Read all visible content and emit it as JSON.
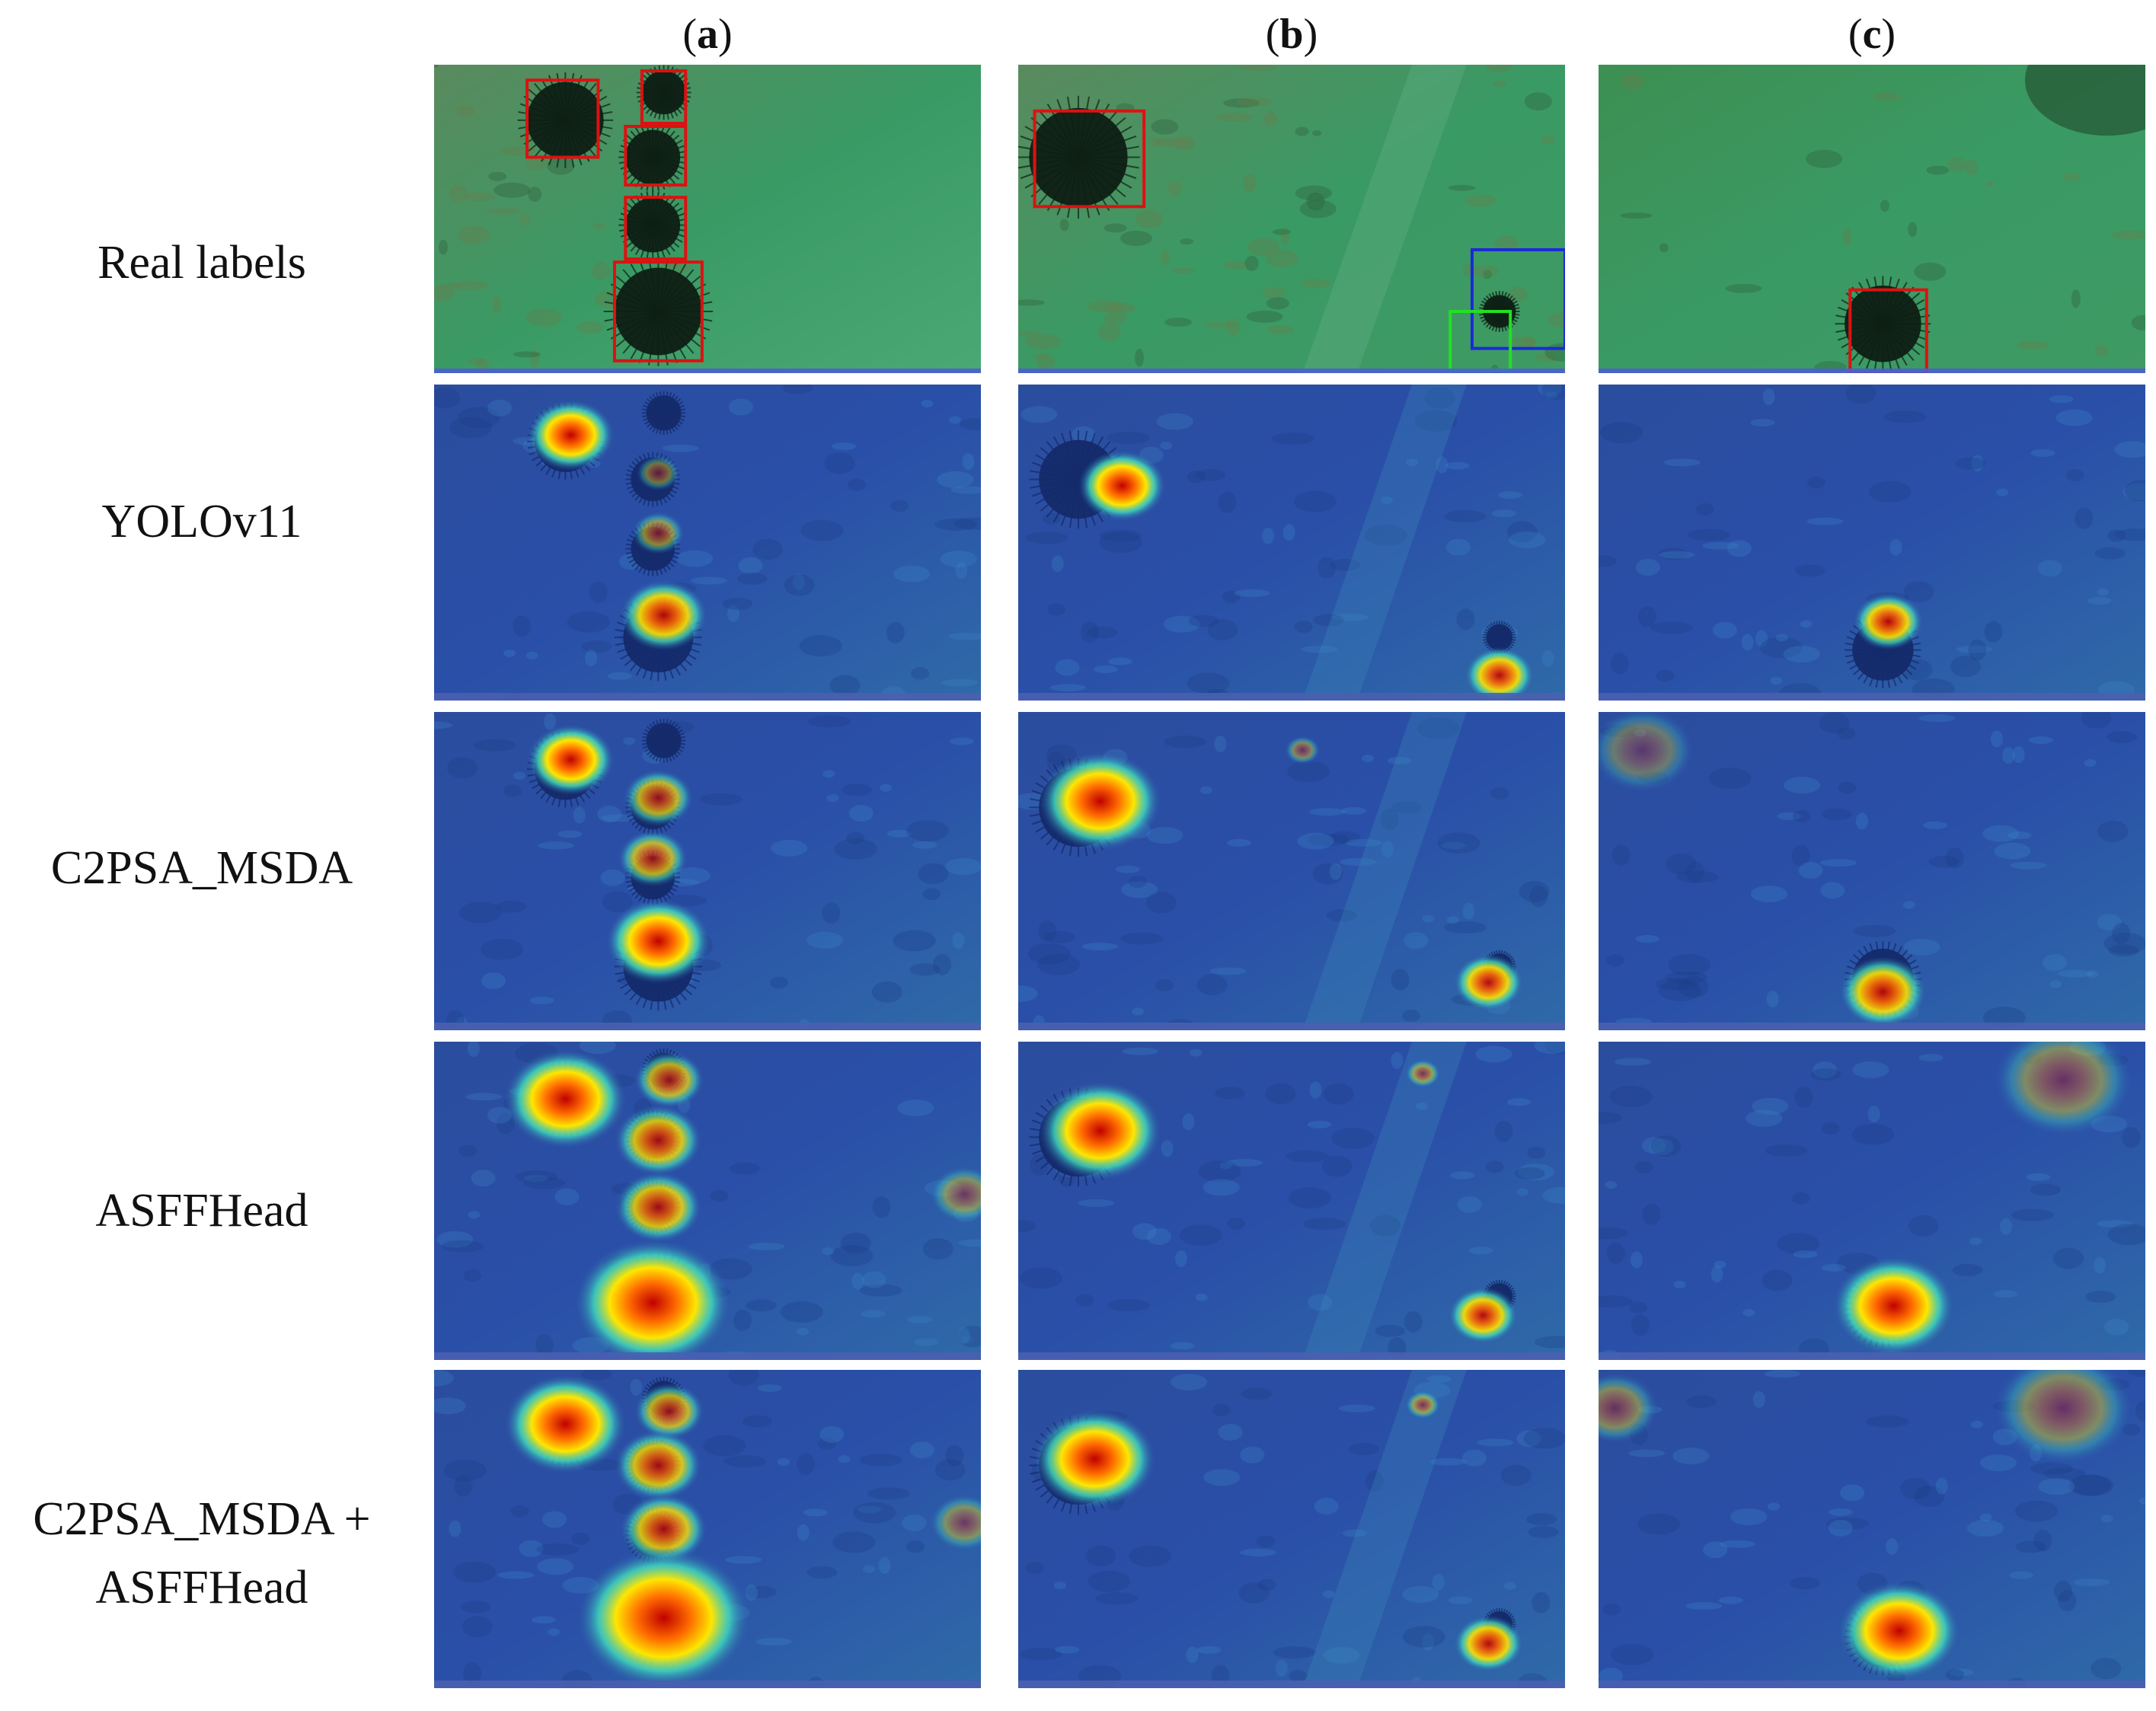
{
  "columns": [
    {
      "open": "(",
      "letter": "a",
      "close": ")"
    },
    {
      "open": "(",
      "letter": "b",
      "close": ")"
    },
    {
      "open": "(",
      "letter": "c",
      "close": ")"
    }
  ],
  "rows": [
    {
      "lines": [
        "Real labels"
      ],
      "kind": "photo"
    },
    {
      "lines": [
        "YOLOv11"
      ],
      "kind": "heatmap"
    },
    {
      "lines": [
        "C2PSA_MSDA"
      ],
      "kind": "heatmap"
    },
    {
      "lines": [
        "ASFFHead"
      ],
      "kind": "heatmap"
    },
    {
      "lines": [
        "C2PSA_MSDA +",
        "ASFFHead"
      ],
      "kind": "heatmap"
    }
  ],
  "colors": {
    "box_red": "#dd1111",
    "box_blue": "#1a2ad6",
    "box_green": "#22e022",
    "water_green": "#3a9a64",
    "heat_base": "#2a4fa8"
  }
}
